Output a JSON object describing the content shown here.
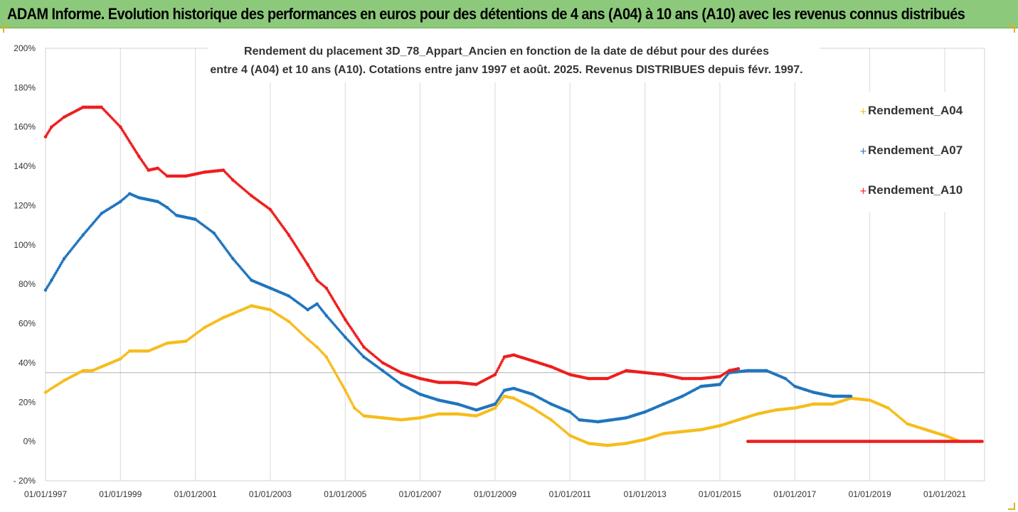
{
  "banner": {
    "title": "ADAM Informe. Evolution historique des performances en euros pour des détentions de 4 ans (A04) à 10 ans (A10) avec les revenus connus distribués"
  },
  "colors": {
    "banner_bg": "#8dc97b",
    "a04": "#f6bc1b",
    "a07": "#1f74bd",
    "a10": "#ee1c1c",
    "gridline": "#d9d9d9"
  },
  "chart_data": {
    "type": "scatter",
    "title": "",
    "subtitle_lines": [
      "Rendement du placement 3D_78_Appart_Ancien en fonction de la date de début pour des durées",
      "entre 4 (A04) et 10 ans (A10). Cotations entre janv 1997 et août. 2025. Revenus DISTRIBUES depuis févr. 1997."
    ],
    "xlabel": "",
    "ylabel": "",
    "x_range": [
      "1997-01-01",
      "2022-01-01"
    ],
    "ylim": [
      -20,
      200
    ],
    "x_tick_labels": [
      "01/01/1997",
      "01/01/1999",
      "01/01/2001",
      "01/01/2003",
      "01/01/2005",
      "01/01/2007",
      "01/01/2009",
      "01/01/2011",
      "01/01/2013",
      "01/01/2015",
      "01/01/2017",
      "01/01/2019",
      "01/01/2021"
    ],
    "x_tick_dates": [
      "1997-01-01",
      "1999-01-01",
      "2001-01-01",
      "2003-01-01",
      "2005-01-01",
      "2007-01-01",
      "2009-01-01",
      "2011-01-01",
      "2013-01-01",
      "2015-01-01",
      "2017-01-01",
      "2019-01-01",
      "2021-01-01"
    ],
    "y_ticks": [
      -20,
      0,
      20,
      40,
      60,
      80,
      100,
      120,
      140,
      160,
      180,
      200
    ],
    "y_tick_labels": [
      "- 20%",
      "0%",
      "20%",
      "40%",
      "60%",
      "80%",
      "100%",
      "120%",
      "140%",
      "160%",
      "180%",
      "200%"
    ],
    "reference_line_y": 35,
    "grid": "vertical",
    "legend_position": "right",
    "series": [
      {
        "name": "Rendement_A04",
        "points": [
          [
            "1997-01-01",
            25
          ],
          [
            "1997-07-01",
            31
          ],
          [
            "1998-01-01",
            36
          ],
          [
            "1998-04-01",
            36
          ],
          [
            "1998-07-01",
            38
          ],
          [
            "1999-01-01",
            42
          ],
          [
            "1999-04-01",
            46
          ],
          [
            "1999-10-01",
            46
          ],
          [
            "2000-04-01",
            50
          ],
          [
            "2000-10-01",
            51
          ],
          [
            "2001-04-01",
            58
          ],
          [
            "2001-10-01",
            63
          ],
          [
            "2002-01-01",
            65
          ],
          [
            "2002-07-01",
            69
          ],
          [
            "2003-01-01",
            67
          ],
          [
            "2003-07-01",
            61
          ],
          [
            "2004-01-01",
            52
          ],
          [
            "2004-04-01",
            48
          ],
          [
            "2004-07-01",
            43
          ],
          [
            "2005-01-01",
            26
          ],
          [
            "2005-04-01",
            17
          ],
          [
            "2005-07-01",
            13
          ],
          [
            "2006-01-01",
            12
          ],
          [
            "2006-07-01",
            11
          ],
          [
            "2007-01-01",
            12
          ],
          [
            "2007-07-01",
            14
          ],
          [
            "2008-01-01",
            14
          ],
          [
            "2008-07-01",
            13
          ],
          [
            "2009-01-01",
            17
          ],
          [
            "2009-04-01",
            23
          ],
          [
            "2009-07-01",
            22
          ],
          [
            "2010-01-01",
            17
          ],
          [
            "2010-07-01",
            11
          ],
          [
            "2011-01-01",
            3
          ],
          [
            "2011-07-01",
            -1
          ],
          [
            "2012-01-01",
            -2
          ],
          [
            "2012-07-01",
            -1
          ],
          [
            "2013-01-01",
            1
          ],
          [
            "2013-07-01",
            4
          ],
          [
            "2014-01-01",
            5
          ],
          [
            "2014-07-01",
            6
          ],
          [
            "2015-01-01",
            8
          ],
          [
            "2015-07-01",
            11
          ],
          [
            "2016-01-01",
            14
          ],
          [
            "2016-07-01",
            16
          ],
          [
            "2017-01-01",
            17
          ],
          [
            "2017-07-01",
            19
          ],
          [
            "2018-01-01",
            19
          ],
          [
            "2018-07-01",
            22
          ],
          [
            "2019-01-01",
            21
          ],
          [
            "2019-07-01",
            17
          ],
          [
            "2020-01-01",
            9
          ],
          [
            "2020-07-01",
            6
          ],
          [
            "2021-01-01",
            3
          ],
          [
            "2021-06-01",
            0
          ]
        ]
      },
      {
        "name": "Rendement_A07",
        "points": [
          [
            "1997-01-01",
            77
          ],
          [
            "1997-03-01",
            82
          ],
          [
            "1997-07-01",
            93
          ],
          [
            "1998-01-01",
            105
          ],
          [
            "1998-07-01",
            116
          ],
          [
            "1999-01-01",
            122
          ],
          [
            "1999-04-01",
            126
          ],
          [
            "1999-07-01",
            124
          ],
          [
            "2000-01-01",
            122
          ],
          [
            "2000-04-01",
            119
          ],
          [
            "2000-07-01",
            115
          ],
          [
            "2001-01-01",
            113
          ],
          [
            "2001-07-01",
            106
          ],
          [
            "2002-01-01",
            93
          ],
          [
            "2002-07-01",
            82
          ],
          [
            "2003-01-01",
            78
          ],
          [
            "2003-07-01",
            74
          ],
          [
            "2004-01-01",
            67
          ],
          [
            "2004-04-01",
            70
          ],
          [
            "2004-07-01",
            64
          ],
          [
            "2005-01-01",
            53
          ],
          [
            "2005-07-01",
            43
          ],
          [
            "2006-01-01",
            36
          ],
          [
            "2006-07-01",
            29
          ],
          [
            "2007-01-01",
            24
          ],
          [
            "2007-07-01",
            21
          ],
          [
            "2008-01-01",
            19
          ],
          [
            "2008-07-01",
            16
          ],
          [
            "2009-01-01",
            19
          ],
          [
            "2009-04-01",
            26
          ],
          [
            "2009-07-01",
            27
          ],
          [
            "2010-01-01",
            24
          ],
          [
            "2010-07-01",
            19
          ],
          [
            "2011-01-01",
            15
          ],
          [
            "2011-04-01",
            11
          ],
          [
            "2011-10-01",
            10
          ],
          [
            "2012-07-01",
            12
          ],
          [
            "2013-01-01",
            15
          ],
          [
            "2013-07-01",
            19
          ],
          [
            "2014-01-01",
            23
          ],
          [
            "2014-07-01",
            28
          ],
          [
            "2015-01-01",
            29
          ],
          [
            "2015-04-01",
            35
          ],
          [
            "2015-10-01",
            36
          ],
          [
            "2016-04-01",
            36
          ],
          [
            "2016-10-01",
            32
          ],
          [
            "2017-01-01",
            28
          ],
          [
            "2017-07-01",
            25
          ],
          [
            "2018-01-01",
            23
          ],
          [
            "2018-07-01",
            23
          ]
        ]
      },
      {
        "name": "Rendement_A10",
        "points": [
          [
            "1997-01-01",
            155
          ],
          [
            "1997-03-01",
            160
          ],
          [
            "1997-07-01",
            165
          ],
          [
            "1998-01-01",
            170
          ],
          [
            "1998-07-01",
            170
          ],
          [
            "1999-01-01",
            160
          ],
          [
            "1999-07-01",
            145
          ],
          [
            "1999-10-01",
            138
          ],
          [
            "2000-01-01",
            139
          ],
          [
            "2000-04-01",
            135
          ],
          [
            "2000-10-01",
            135
          ],
          [
            "2001-04-01",
            137
          ],
          [
            "2001-10-01",
            138
          ],
          [
            "2002-01-01",
            133
          ],
          [
            "2002-07-01",
            125
          ],
          [
            "2003-01-01",
            118
          ],
          [
            "2003-07-01",
            105
          ],
          [
            "2004-01-01",
            90
          ],
          [
            "2004-04-01",
            82
          ],
          [
            "2004-07-01",
            78
          ],
          [
            "2005-01-01",
            62
          ],
          [
            "2005-07-01",
            48
          ],
          [
            "2006-01-01",
            40
          ],
          [
            "2006-07-01",
            35
          ],
          [
            "2007-01-01",
            32
          ],
          [
            "2007-07-01",
            30
          ],
          [
            "2008-01-01",
            30
          ],
          [
            "2008-07-01",
            29
          ],
          [
            "2009-01-01",
            34
          ],
          [
            "2009-04-01",
            43
          ],
          [
            "2009-07-01",
            44
          ],
          [
            "2010-01-01",
            41
          ],
          [
            "2010-07-01",
            38
          ],
          [
            "2011-01-01",
            34
          ],
          [
            "2011-07-01",
            32
          ],
          [
            "2012-01-01",
            32
          ],
          [
            "2012-07-01",
            36
          ],
          [
            "2013-01-01",
            35
          ],
          [
            "2013-07-01",
            34
          ],
          [
            "2014-01-01",
            32
          ],
          [
            "2014-07-01",
            32
          ],
          [
            "2015-01-01",
            33
          ],
          [
            "2015-04-01",
            36
          ],
          [
            "2015-07-01",
            37
          ],
          [
            "2015-10-01",
            0
          ],
          [
            "2022-01-01",
            0
          ]
        ]
      }
    ]
  }
}
